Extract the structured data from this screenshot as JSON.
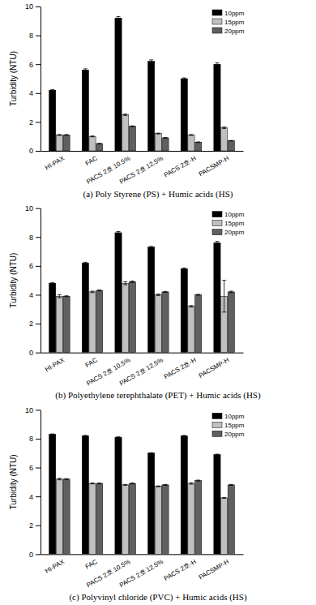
{
  "chart_data": [
    {
      "type": "bar",
      "title": "(a) Poly Styrene (PS) + Humic acids (HS)",
      "y_label": "Turbidity (NTU)",
      "categories": [
        "HI-PAX",
        "FAC",
        "PACS 2호 10.5%",
        "PACS 2호 12.5%",
        "PACS 2호-H",
        "PACSMP-H"
      ],
      "series": [
        {
          "name": "10ppm",
          "color": "#000000",
          "values": [
            4.2,
            5.6,
            9.2,
            6.2,
            5.0,
            6.0
          ],
          "errors": [
            0.05,
            0.08,
            0.1,
            0.1,
            0.05,
            0.1
          ]
        },
        {
          "name": "15ppm",
          "color": "#c0c0c0",
          "values": [
            1.1,
            1.0,
            2.5,
            1.2,
            1.1,
            1.6
          ],
          "errors": [
            0.03,
            0.03,
            0.05,
            0.03,
            0.03,
            0.05
          ]
        },
        {
          "name": "20ppm",
          "color": "#606060",
          "values": [
            1.1,
            0.5,
            1.7,
            0.9,
            0.6,
            0.7
          ],
          "errors": [
            0.03,
            0.02,
            0.03,
            0.02,
            0.02,
            0.02
          ]
        }
      ],
      "ylim": [
        0,
        10
      ],
      "yticks": [
        0,
        2,
        4,
        6,
        8,
        10
      ],
      "legend": "upper right"
    },
    {
      "type": "bar",
      "title": "(b) Polyethylene terephthalate (PET) + Humic acids (HS)",
      "y_label": "Turbidity (NTU)",
      "categories": [
        "HI-PAX",
        "FAC",
        "PACS 2호 10.5%",
        "PACS 2호 12.5%",
        "PACS 2호-H",
        "PACSMP-H"
      ],
      "series": [
        {
          "name": "10ppm",
          "color": "#000000",
          "values": [
            4.8,
            6.2,
            8.3,
            7.3,
            5.8,
            7.6
          ],
          "errors": [
            0.05,
            0.05,
            0.08,
            0.05,
            0.05,
            0.1
          ]
        },
        {
          "name": "15ppm",
          "color": "#c0c0c0",
          "values": [
            3.9,
            4.2,
            4.8,
            4.0,
            3.2,
            3.9
          ],
          "errors": [
            0.1,
            0.05,
            0.1,
            0.05,
            0.05,
            1.1
          ]
        },
        {
          "name": "20ppm",
          "color": "#606060",
          "values": [
            3.9,
            4.3,
            4.9,
            4.2,
            4.0,
            4.2
          ],
          "errors": [
            0.03,
            0.03,
            0.05,
            0.03,
            0.03,
            0.05
          ]
        }
      ],
      "ylim": [
        0,
        10
      ],
      "yticks": [
        0,
        2,
        4,
        6,
        8,
        10
      ],
      "legend": "upper right"
    },
    {
      "type": "bar",
      "title": "(c) Polyvinyl chloride (PVC) + Humic acids (HS)",
      "y_label": "Turbidity (NTU)",
      "categories": [
        "HI-PAX",
        "FAC",
        "PACS 2호 10.5%",
        "PACS 2호 12.5%",
        "PACS 2호-H",
        "PACSMP-H"
      ],
      "series": [
        {
          "name": "10ppm",
          "color": "#000000",
          "values": [
            8.3,
            8.2,
            8.1,
            7.0,
            8.2,
            6.9
          ],
          "errors": [
            0.03,
            0.03,
            0.03,
            0.03,
            0.03,
            0.03
          ]
        },
        {
          "name": "15ppm",
          "color": "#c0c0c0",
          "values": [
            5.2,
            4.9,
            4.8,
            4.7,
            4.9,
            3.9
          ],
          "errors": [
            0.05,
            0.03,
            0.03,
            0.03,
            0.05,
            0.03
          ]
        },
        {
          "name": "20ppm",
          "color": "#606060",
          "values": [
            5.2,
            4.9,
            4.9,
            4.8,
            5.1,
            4.8
          ],
          "errors": [
            0.03,
            0.03,
            0.03,
            0.03,
            0.03,
            0.03
          ]
        }
      ],
      "ylim": [
        0,
        10
      ],
      "yticks": [
        0,
        2,
        4,
        6,
        8,
        10
      ],
      "legend": "upper right"
    }
  ]
}
